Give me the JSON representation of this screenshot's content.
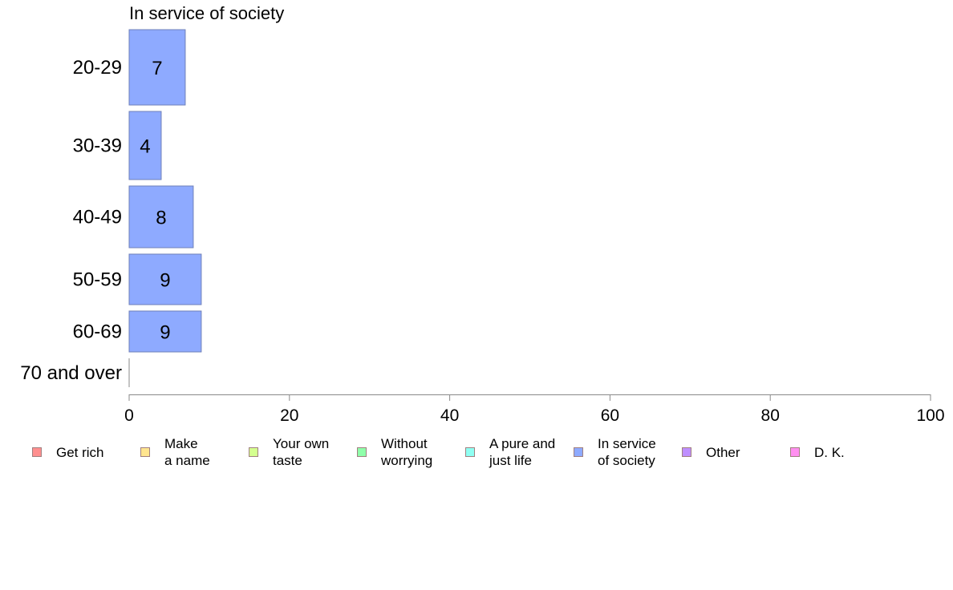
{
  "chart_data": {
    "type": "bar",
    "orientation": "horizontal",
    "title": "In service of society",
    "categories": [
      "20-29",
      "30-39",
      "40-49",
      "50-59",
      "60-69",
      "70 and over"
    ],
    "values": [
      7,
      4,
      8,
      9,
      9,
      0
    ],
    "data_labels": [
      "7",
      "4",
      "8",
      "9",
      "9",
      ""
    ],
    "xlim": [
      0,
      100
    ],
    "xticks": [
      "0",
      "20",
      "40",
      "60",
      "80",
      "100"
    ],
    "grid": false,
    "legend_position": "bottom",
    "bar_color": "#8eaaff",
    "legend": [
      {
        "label": "Get rich",
        "color": "#ff8f8f"
      },
      {
        "label": "Make\na name",
        "color": "#ffe58f"
      },
      {
        "label": "Your own\ntaste",
        "color": "#d4ff8f"
      },
      {
        "label": "Without\nworrying",
        "color": "#8fffaa"
      },
      {
        "label": "A pure and\njust life",
        "color": "#8ffff2"
      },
      {
        "label": "In service\nof society",
        "color": "#8eaaff"
      },
      {
        "label": "Other",
        "color": "#bf8fff"
      },
      {
        "label": "D. K.",
        "color": "#ff8ff0"
      }
    ]
  }
}
